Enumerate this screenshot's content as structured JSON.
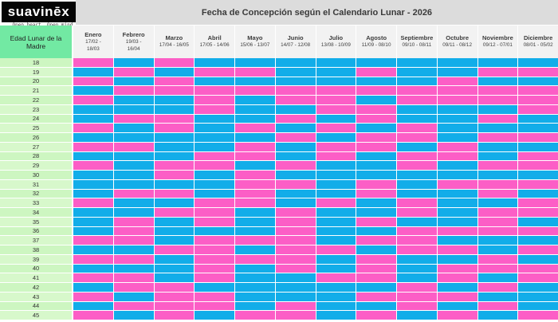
{
  "logo": {
    "text": "suavinēx",
    "tagline": "Open heart. Open mind."
  },
  "header": {
    "title": "Fecha de Concepción según el Calendario Lunar - 2026"
  },
  "table": {
    "row_header_label": "Edad Lunar de la Madre",
    "months": [
      {
        "name": "Enero",
        "dates": [
          "17/02 -",
          "18/03"
        ]
      },
      {
        "name": "Febrero",
        "dates": [
          "19/03 -",
          "16/04"
        ]
      },
      {
        "name": "Marzo",
        "dates": [
          "17/04 - 16/05"
        ]
      },
      {
        "name": "Abril",
        "dates": [
          "17/05 - 14/06"
        ]
      },
      {
        "name": "Mayo",
        "dates": [
          "15/06 - 13/07"
        ]
      },
      {
        "name": "Junio",
        "dates": [
          "14/07 - 12/08"
        ]
      },
      {
        "name": "Julio",
        "dates": [
          "13/08 - 10/09"
        ]
      },
      {
        "name": "Agosto",
        "dates": [
          "11/09 - 08/10"
        ]
      },
      {
        "name": "Septiembre",
        "dates": [
          "09/10 - 08/11"
        ]
      },
      {
        "name": "Octubre",
        "dates": [
          "09/11 - 08/12"
        ]
      },
      {
        "name": "Noviembre",
        "dates": [
          "09/12 - 07/01"
        ]
      },
      {
        "name": "Diciembre",
        "dates": [
          "08/01 - 05/02"
        ]
      }
    ],
    "rows": [
      {
        "age": "18",
        "cells": "PBPBBBBBBBBB"
      },
      {
        "age": "19",
        "cells": "BPBPPBBPBBPP"
      },
      {
        "age": "20",
        "cells": "PBPBBBBBBPBB"
      },
      {
        "age": "21",
        "cells": "BPPPPPPPPPPP"
      },
      {
        "age": "22",
        "cells": "PBBPBPPBPPPP"
      },
      {
        "age": "23",
        "cells": "BBBPBBPPBBBP"
      },
      {
        "age": "24",
        "cells": "BPPBBPBPBBPB"
      },
      {
        "age": "25",
        "cells": "PBPBPBPBPBBB"
      },
      {
        "age": "26",
        "cells": "BBBBBPBPPBPP"
      },
      {
        "age": "27",
        "cells": "PPBBPBPPBPBB"
      },
      {
        "age": "28",
        "cells": "BBBPPBPBPPBP"
      },
      {
        "age": "29",
        "cells": "PBPPBPBBPBPP"
      },
      {
        "age": "30",
        "cells": "BBPBPBBBBBBB"
      },
      {
        "age": "31",
        "cells": "BBBBPPBPBPPP"
      },
      {
        "age": "32",
        "cells": "BPPBPBBPBBPB"
      },
      {
        "age": "33",
        "cells": "PBBPPBPBPBBP"
      },
      {
        "age": "34",
        "cells": "BBPPBPBBPBPP"
      },
      {
        "age": "35",
        "cells": "BPBPBPBPBBPB"
      },
      {
        "age": "36",
        "cells": "BPBBBPBBPPPP"
      },
      {
        "age": "37",
        "cells": "PPBPPPBPPBBB"
      },
      {
        "age": "38",
        "cells": "BBPPBPPBPPBP"
      },
      {
        "age": "39",
        "cells": "PPBPPPBPBBPB"
      },
      {
        "age": "40",
        "cells": "BBBPBPBPBPPP"
      },
      {
        "age": "41",
        "cells": "PPBPBBPPBPBP"
      },
      {
        "age": "42",
        "cells": "BPPBBBBBPBPB"
      },
      {
        "age": "43",
        "cells": "PBPPBBBPPPBB"
      },
      {
        "age": "44",
        "cells": "BPPPBPBBPBPB"
      },
      {
        "age": "45",
        "cells": "PBPBPPBPBPBP"
      }
    ]
  },
  "colors": {
    "cell_pink": "#fc5ec6",
    "cell_blue": "#12ade9",
    "header_green": "#72e9a3",
    "age_green_a": "#cdf6c1",
    "age_green_b": "#d7f8cb",
    "titlebar_gray": "#dcdcdc",
    "month_header_gray": "#f2f2f2",
    "logo_black": "#050505"
  },
  "chart_data": {
    "type": "heatmap",
    "title": "Fecha de Concepción según el Calendario Lunar - 2026",
    "x_categories": [
      "Enero 17/02 - 18/03",
      "Febrero 19/03 - 16/04",
      "Marzo 17/04 - 16/05",
      "Abril 17/05 - 14/06",
      "Mayo 15/06 - 13/07",
      "Junio 14/07 - 12/08",
      "Julio 13/08 - 10/09",
      "Agosto 11/09 - 08/10",
      "Septiembre 09/10 - 08/11",
      "Octubre 09/11 - 08/12",
      "Noviembre 09/12 - 07/01",
      "Diciembre 08/01 - 05/02"
    ],
    "y_label": "Edad Lunar de la Madre",
    "y_categories": [
      18,
      19,
      20,
      21,
      22,
      23,
      24,
      25,
      26,
      27,
      28,
      29,
      30,
      31,
      32,
      33,
      34,
      35,
      36,
      37,
      38,
      39,
      40,
      41,
      42,
      43,
      44,
      45
    ],
    "cell_encoding": {
      "P": "#fc5ec6",
      "B": "#12ade9"
    },
    "values": [
      "PBPBBBBBBBBB",
      "BPBPPBBPBBPP",
      "PBPBBBBBBPBB",
      "BPPPPPPPPPPP",
      "PBBPBPPBPPPP",
      "BBBPBBPPBBBP",
      "BPPBBPBPBBPB",
      "PBPBPBPBPBBB",
      "BBBBBPBPPBPP",
      "PPBBPBPPBPBB",
      "BBBPPBPBPPBP",
      "PBPPBPBBPBPP",
      "BBPBPBBBBBBB",
      "BBBBPPBPBPPP",
      "BPPBPBBPBBPB",
      "PBBPPBPBPBBP",
      "BBPPBPBBPBPP",
      "BPBPBPBPBBPB",
      "BPBBBPBBPPPP",
      "PPBPPPBPPBBB",
      "BBPPBPPBPPBP",
      "PPBPPPBPBBPB",
      "BBBPBPBPBPPP",
      "PPBPBBPPBPBP",
      "BPPBBBBBPBPB",
      "PBPPBBBPPPBB",
      "BPPPBPBBPBPB",
      "PBPBPPBPBPBP"
    ]
  }
}
